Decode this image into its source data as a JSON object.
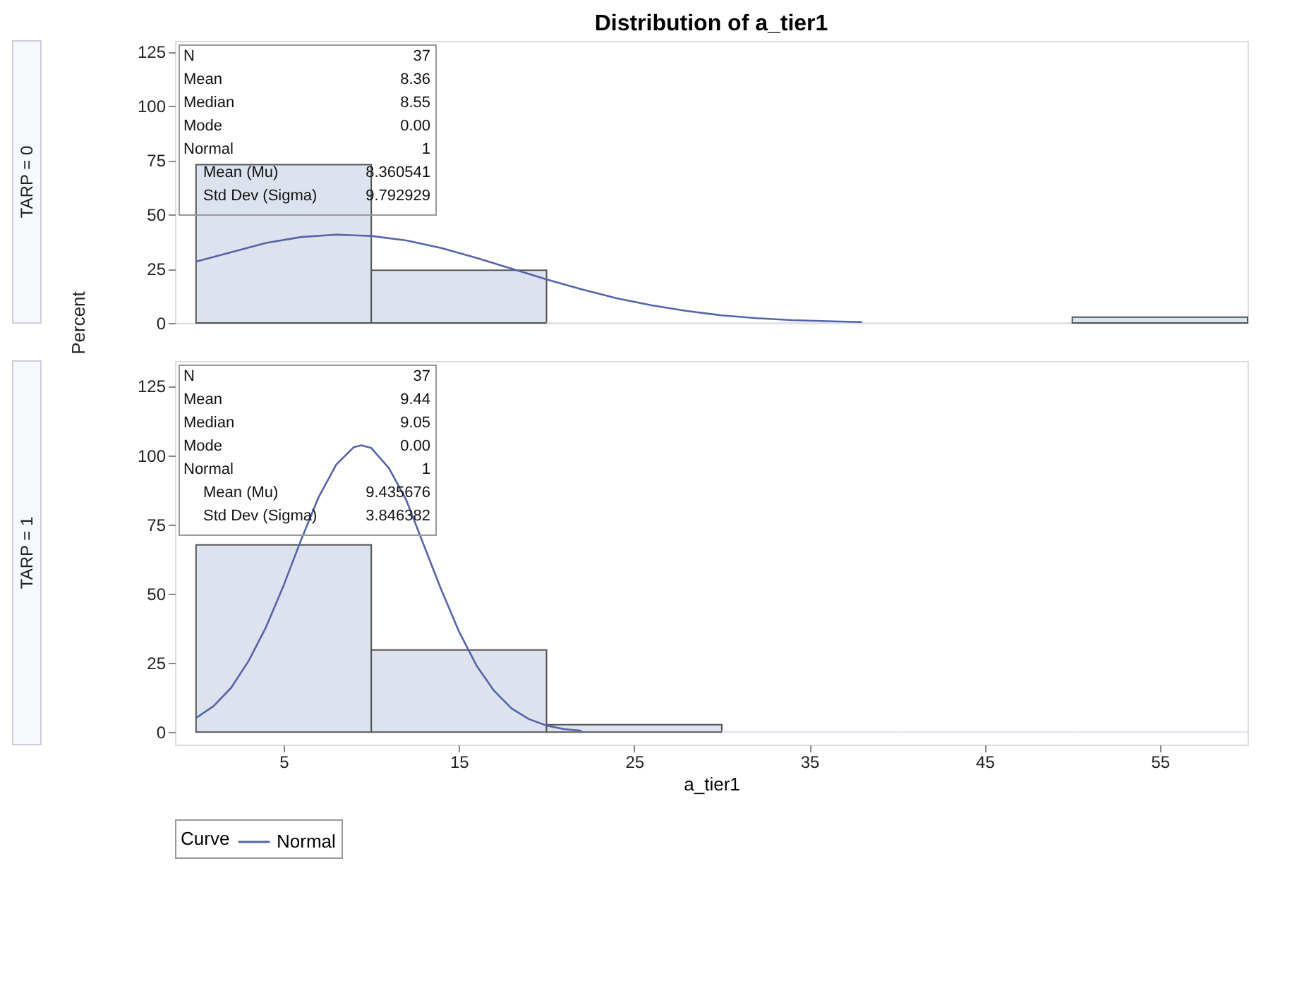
{
  "chart_data": [
    {
      "type": "histogram",
      "title": "Distribution of a_tier1",
      "subtitle": "TARP = 0",
      "ylabel": "Percent",
      "bins": [
        0,
        10,
        20,
        30,
        40,
        50,
        60
      ],
      "values": [
        73,
        24.3,
        0,
        0,
        0,
        2.7
      ],
      "color": "#dde3ee",
      "series": [
        {
          "type": "line",
          "color": "#5563a8",
          "x": [
            0,
            2,
            4,
            6,
            8,
            10,
            12,
            14,
            16,
            18,
            20,
            22,
            24,
            26,
            28,
            30,
            32,
            34,
            36,
            38
          ],
          "values": [
            28.3,
            32.6,
            36.9,
            39.6,
            40.7,
            40.1,
            38.0,
            34.5,
            30.0,
            25.0,
            20.1,
            15.5,
            11.4,
            8.1,
            5.5,
            3.5,
            2.2,
            1.3,
            0.8,
            0.4
          ]
        }
      ],
      "xlim": [
        -1.2,
        60
      ],
      "xticks": [
        5,
        15,
        25,
        35,
        45,
        55
      ],
      "ylim": [
        0,
        130
      ],
      "yticks": [
        0,
        25,
        50,
        75,
        100,
        125
      ],
      "tick_labels": "y",
      "grid": false,
      "annotations": [
        "N",
        "37",
        "Mean",
        "8.36",
        "Median",
        "8.55",
        "Mode",
        "0.00",
        "Normal",
        "1",
        "  Mean (Mu)",
        "8.360541",
        "  Std Dev (Sigma)",
        "9.792929"
      ]
    },
    {
      "type": "histogram",
      "subtitle": "TARP = 1",
      "xlabel": "a_tier1",
      "bins": [
        0,
        10,
        20,
        30,
        40,
        50,
        60
      ],
      "values": [
        67.6,
        29.7,
        2.7,
        0,
        0,
        0
      ],
      "color": "#dde3ee",
      "series": [
        {
          "type": "line",
          "name": "Normal",
          "color": "#5563a8",
          "x": [
            0,
            1,
            2,
            3,
            4,
            5,
            6,
            7,
            8,
            9,
            9.44,
            10,
            11,
            12,
            13,
            14,
            15,
            16,
            17,
            18,
            19,
            20,
            21,
            22
          ],
          "values": [
            5.1,
            9.4,
            16,
            25.7,
            38,
            53,
            69.5,
            84.9,
            96.6,
            102.9,
            103.6,
            102.6,
            95.4,
            83.8,
            67.5,
            51.3,
            36.4,
            24.1,
            15,
            8.6,
            4.7,
            2.4,
            1.1,
            0.5
          ]
        }
      ],
      "xlim": [
        -1.2,
        60
      ],
      "xticks": [
        5,
        15,
        25,
        35,
        45,
        55
      ],
      "ylim": [
        -4.5,
        134
      ],
      "yticks": [
        0,
        25,
        50,
        75,
        100,
        125
      ],
      "legend": "bottom",
      "legend_title": "Curve",
      "grid": false,
      "annotations": [
        "N",
        "37",
        "Mean",
        "9.44",
        "Median",
        "9.05",
        "Mode",
        "0.00",
        "Normal",
        "1",
        "  Mean (Mu)",
        "9.435676",
        "  Std Dev (Sigma)",
        "3.846382"
      ]
    }
  ]
}
